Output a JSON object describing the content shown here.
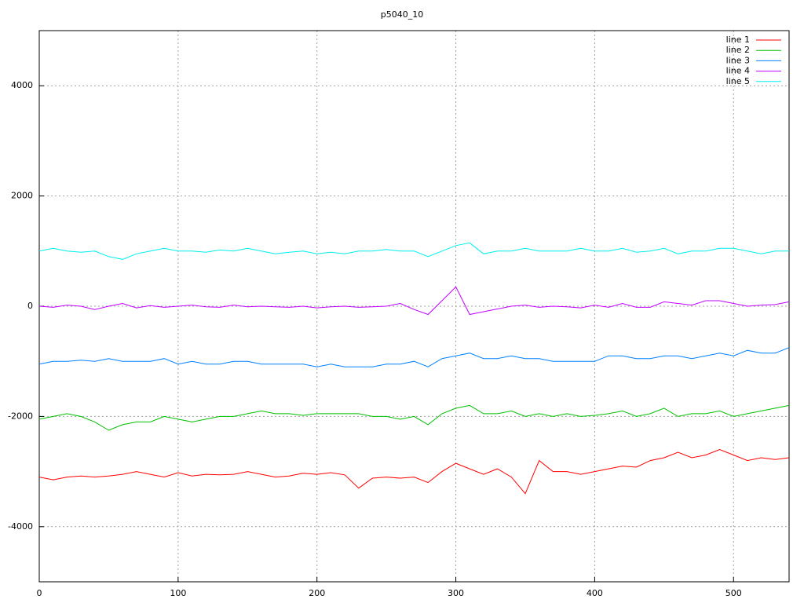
{
  "chart_data": {
    "type": "line",
    "title": "p5040_10",
    "x": [
      0,
      10,
      20,
      30,
      40,
      50,
      60,
      70,
      80,
      90,
      100,
      110,
      120,
      130,
      140,
      150,
      160,
      170,
      180,
      190,
      200,
      210,
      220,
      230,
      240,
      250,
      260,
      270,
      280,
      290,
      300,
      310,
      320,
      330,
      340,
      350,
      360,
      370,
      380,
      390,
      400,
      410,
      420,
      430,
      440,
      450,
      460,
      470,
      480,
      490,
      500,
      510,
      520,
      530,
      540
    ],
    "series": [
      {
        "name": "line 1",
        "color": "#ff0000",
        "values": [
          -3100,
          -3150,
          -3100,
          -3080,
          -3100,
          -3080,
          -3050,
          -3000,
          -3050,
          -3100,
          -3020,
          -3080,
          -3050,
          -3060,
          -3050,
          -3000,
          -3050,
          -3100,
          -3080,
          -3030,
          -3050,
          -3020,
          -3060,
          -3300,
          -3120,
          -3100,
          -3120,
          -3100,
          -3200,
          -3000,
          -2850,
          -2950,
          -3050,
          -2950,
          -3100,
          -3400,
          -2800,
          -3000,
          -3000,
          -3050,
          -3000,
          -2950,
          -2900,
          -2920,
          -2800,
          -2750,
          -2650,
          -2750,
          -2700,
          -2600,
          -2700,
          -2800,
          -2750,
          -2780,
          -2750
        ]
      },
      {
        "name": "line 2",
        "color": "#00c000",
        "values": [
          -2050,
          -2000,
          -1950,
          -2000,
          -2100,
          -2250,
          -2150,
          -2100,
          -2100,
          -2000,
          -2050,
          -2100,
          -2050,
          -2000,
          -2000,
          -1950,
          -1900,
          -1950,
          -1950,
          -1980,
          -1950,
          -1950,
          -1950,
          -1950,
          -2000,
          -2000,
          -2050,
          -2000,
          -2150,
          -1950,
          -1850,
          -1800,
          -1950,
          -1950,
          -1900,
          -2000,
          -1950,
          -2000,
          -1950,
          -2000,
          -1980,
          -1950,
          -1900,
          -2000,
          -1950,
          -1850,
          -2000,
          -1950,
          -1950,
          -1900,
          -2000,
          -1950,
          -1900,
          -1850,
          -1800
        ]
      },
      {
        "name": "line 3",
        "color": "#0080ff",
        "values": [
          -1050,
          -1000,
          -1000,
          -980,
          -1000,
          -950,
          -1000,
          -1000,
          -1000,
          -950,
          -1050,
          -1000,
          -1050,
          -1050,
          -1000,
          -1000,
          -1050,
          -1050,
          -1050,
          -1050,
          -1100,
          -1050,
          -1100,
          -1100,
          -1100,
          -1050,
          -1050,
          -1000,
          -1100,
          -950,
          -900,
          -850,
          -950,
          -950,
          -900,
          -950,
          -950,
          -1000,
          -1000,
          -1000,
          -1000,
          -900,
          -900,
          -950,
          -950,
          -900,
          -900,
          -950,
          -900,
          -850,
          -900,
          -800,
          -850,
          -850,
          -750
        ]
      },
      {
        "name": "line 4",
        "color": "#c000ff",
        "values": [
          0,
          -20,
          20,
          0,
          -60,
          0,
          50,
          -30,
          10,
          -20,
          0,
          20,
          -10,
          -20,
          20,
          -10,
          0,
          -10,
          -20,
          0,
          -30,
          -10,
          0,
          -20,
          -10,
          0,
          50,
          -60,
          -150,
          100,
          350,
          -150,
          -100,
          -50,
          0,
          20,
          -20,
          0,
          -10,
          -30,
          20,
          -20,
          50,
          -20,
          -20,
          80,
          50,
          20,
          100,
          100,
          50,
          0,
          20,
          30,
          80
        ]
      },
      {
        "name": "line 5",
        "color": "#00eeee",
        "values": [
          1000,
          1050,
          1000,
          980,
          1000,
          900,
          850,
          950,
          1000,
          1050,
          1000,
          1000,
          980,
          1020,
          1000,
          1050,
          1000,
          950,
          980,
          1000,
          950,
          980,
          950,
          1000,
          1000,
          1030,
          1000,
          1000,
          900,
          1000,
          1100,
          1150,
          950,
          1000,
          1000,
          1050,
          1000,
          1000,
          1000,
          1050,
          1000,
          1000,
          1050,
          980,
          1000,
          1050,
          950,
          1000,
          1000,
          1050,
          1050,
          1000,
          950,
          1000,
          1000
        ]
      }
    ],
    "xlim": [
      0,
      540
    ],
    "xticks": [
      0,
      100,
      200,
      300,
      400,
      500
    ],
    "ylim": [
      -5000,
      5000
    ],
    "yticks": [
      -4000,
      -2000,
      0,
      2000,
      4000
    ],
    "grid": true,
    "legend": "top-right"
  }
}
